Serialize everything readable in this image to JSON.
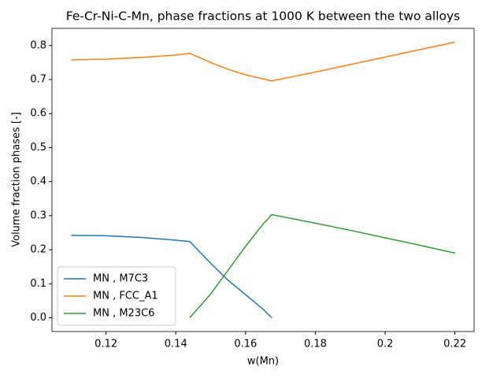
{
  "chart_data": {
    "type": "line",
    "title": "Fe-Cr-Ni-C-Mn, phase fractions at 1000 K between the two alloys",
    "x_label": "w(Mn)",
    "y_label": "Volume fraction phases [-]",
    "x": [
      0.11,
      0.12,
      0.13,
      0.14,
      0.144,
      0.15,
      0.155,
      0.16,
      0.165,
      0.1675,
      0.18,
      0.19,
      0.2,
      0.21,
      0.22
    ],
    "series": [
      {
        "name": "MN , M7C3",
        "color": "#1f77b4",
        "values": [
          0.242,
          0.241,
          0.236,
          0.228,
          0.224,
          0.16,
          0.11,
          0.068,
          0.025,
          0.0,
          null,
          null,
          null,
          null,
          null
        ]
      },
      {
        "name": "MN , FCC_A1",
        "color": "#ff7f0e",
        "values": [
          0.758,
          0.76,
          0.765,
          0.772,
          0.777,
          0.75,
          0.73,
          0.714,
          0.702,
          0.696,
          0.722,
          0.744,
          0.766,
          0.788,
          0.81
        ]
      },
      {
        "name": "MN , M23C6",
        "color": "#2ca02c",
        "values": [
          null,
          null,
          null,
          null,
          0.0,
          0.07,
          0.14,
          0.21,
          0.275,
          0.303,
          0.278,
          0.257,
          0.235,
          0.213,
          0.19
        ]
      }
    ],
    "xlim": [
      0.1045,
      0.2255
    ],
    "ylim": [
      -0.0405,
      0.8505
    ],
    "xticks": [
      0.12,
      0.14,
      0.16,
      0.18,
      0.2,
      0.22
    ],
    "yticks": [
      {
        "value": 0,
        "label": "0.0"
      },
      0.1,
      0.2,
      0.3,
      0.4,
      0.5,
      0.6,
      0.7,
      0.8
    ],
    "legend": "lower left"
  }
}
